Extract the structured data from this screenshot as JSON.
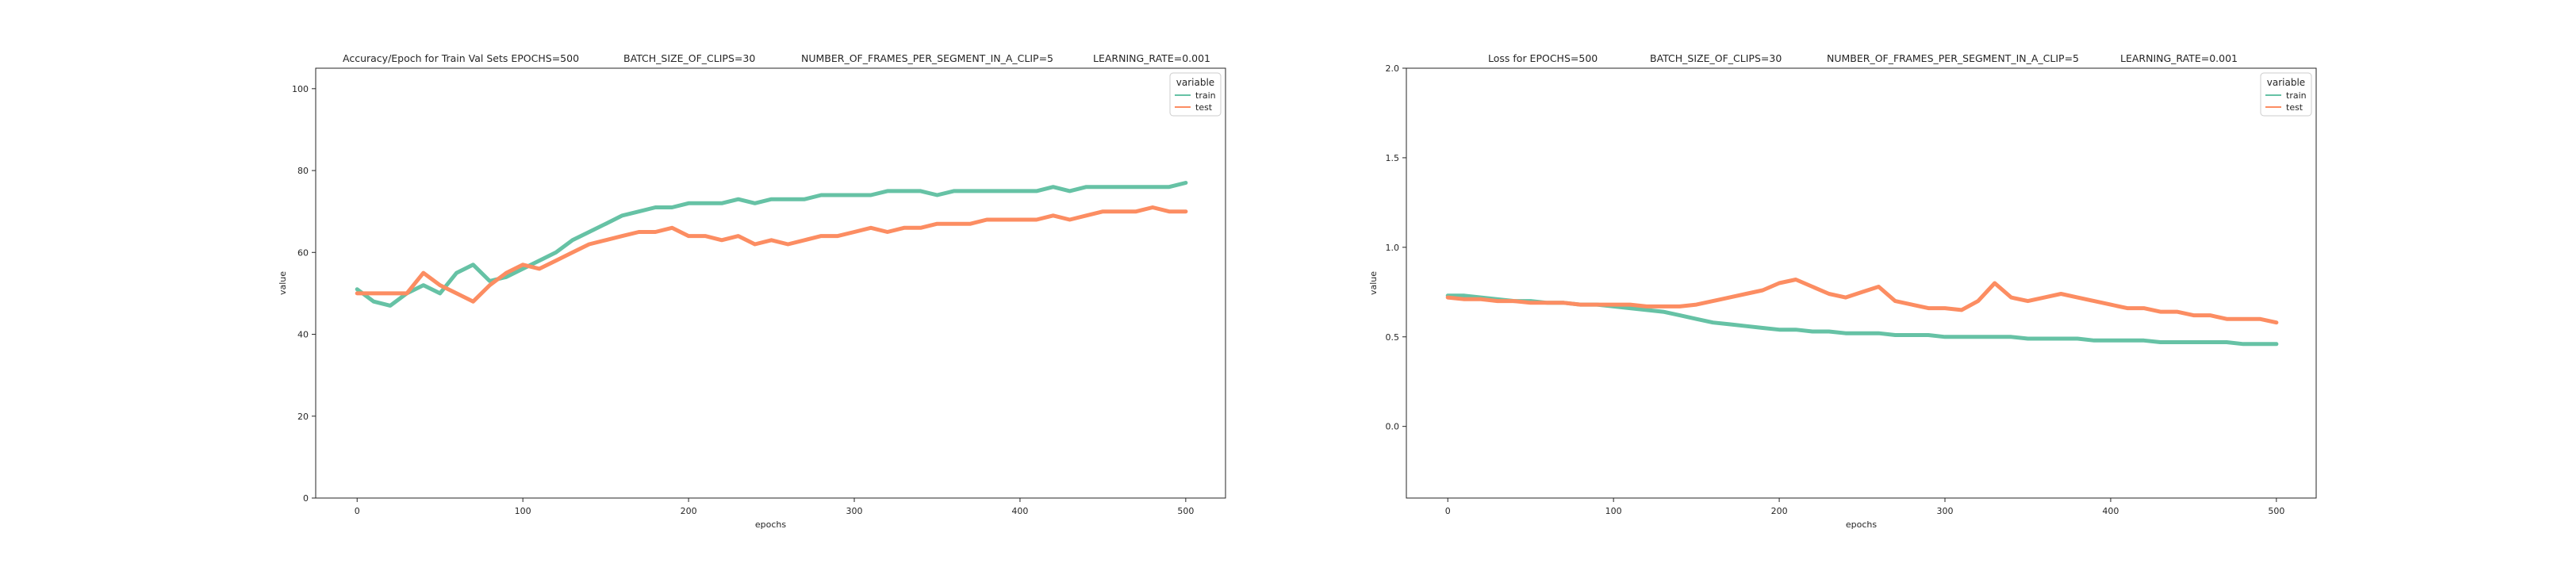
{
  "colors": {
    "train": "#66c2a5",
    "test": "#fc8d62",
    "axis": "#262626",
    "background": "#ffffff"
  },
  "chart_data": [
    {
      "type": "line",
      "title_parts": [
        "Accuracy/Epoch for Train Val Sets EPOCHS=500",
        "BATCH_SIZE_OF_CLIPS=30",
        "NUMBER_OF_FRAMES_PER_SEGMENT_IN_A_CLIP=5",
        "LEARNING_RATE=0.001"
      ],
      "xlabel": "epochs",
      "ylabel": "value",
      "xlim": [
        -25,
        524
      ],
      "ylim": [
        0,
        105
      ],
      "xticks": [
        0,
        100,
        200,
        300,
        400,
        500
      ],
      "yticks": [
        0,
        20,
        40,
        60,
        80,
        100
      ],
      "grid": false,
      "legend": {
        "title": "variable",
        "position": "top-right",
        "entries": [
          "train",
          "test"
        ]
      },
      "series": [
        {
          "name": "train",
          "x": [
            0,
            10,
            20,
            30,
            40,
            50,
            60,
            70,
            80,
            90,
            100,
            110,
            120,
            130,
            140,
            150,
            160,
            170,
            180,
            190,
            200,
            210,
            220,
            230,
            240,
            250,
            260,
            270,
            280,
            290,
            300,
            310,
            320,
            330,
            340,
            350,
            360,
            370,
            380,
            390,
            400,
            410,
            420,
            430,
            440,
            450,
            460,
            470,
            480,
            490,
            500
          ],
          "values": [
            51,
            48,
            47,
            50,
            52,
            50,
            55,
            57,
            53,
            54,
            56,
            58,
            60,
            63,
            65,
            67,
            69,
            70,
            71,
            71,
            72,
            72,
            72,
            73,
            72,
            73,
            73,
            73,
            74,
            74,
            74,
            74,
            75,
            75,
            75,
            74,
            75,
            75,
            75,
            75,
            75,
            75,
            76,
            75,
            76,
            76,
            76,
            76,
            76,
            76,
            77
          ]
        },
        {
          "name": "test",
          "x": [
            0,
            10,
            20,
            30,
            40,
            50,
            60,
            70,
            80,
            90,
            100,
            110,
            120,
            130,
            140,
            150,
            160,
            170,
            180,
            190,
            200,
            210,
            220,
            230,
            240,
            250,
            260,
            270,
            280,
            290,
            300,
            310,
            320,
            330,
            340,
            350,
            360,
            370,
            380,
            390,
            400,
            410,
            420,
            430,
            440,
            450,
            460,
            470,
            480,
            490,
            500
          ],
          "values": [
            50,
            50,
            50,
            50,
            55,
            52,
            50,
            48,
            52,
            55,
            57,
            56,
            58,
            60,
            62,
            63,
            64,
            65,
            65,
            66,
            64,
            64,
            63,
            64,
            62,
            63,
            62,
            63,
            64,
            64,
            65,
            66,
            65,
            66,
            66,
            67,
            67,
            67,
            68,
            68,
            68,
            68,
            69,
            68,
            69,
            70,
            70,
            70,
            71,
            70,
            70
          ]
        }
      ]
    },
    {
      "type": "line",
      "title_parts": [
        "Loss for  EPOCHS=500",
        "BATCH_SIZE_OF_CLIPS=30",
        "NUMBER_OF_FRAMES_PER_SEGMENT_IN_A_CLIP=5",
        "LEARNING_RATE=0.001"
      ],
      "xlabel": "epochs",
      "ylabel": "value",
      "xlim": [
        -25,
        524
      ],
      "ylim": [
        -0.4,
        2.0
      ],
      "xticks": [
        0,
        100,
        200,
        300,
        400,
        500
      ],
      "yticks": [
        0.0,
        0.5,
        1.0,
        1.5,
        2.0
      ],
      "ytick_labels": [
        "0.0",
        "0.5",
        "1.0",
        "1.5",
        "2.0"
      ],
      "grid": false,
      "legend": {
        "title": "variable",
        "position": "top-right",
        "entries": [
          "train",
          "test"
        ]
      },
      "series": [
        {
          "name": "train",
          "x": [
            0,
            10,
            20,
            30,
            40,
            50,
            60,
            70,
            80,
            90,
            100,
            110,
            120,
            130,
            140,
            150,
            160,
            170,
            180,
            190,
            200,
            210,
            220,
            230,
            240,
            250,
            260,
            270,
            280,
            290,
            300,
            310,
            320,
            330,
            340,
            350,
            360,
            370,
            380,
            390,
            400,
            410,
            420,
            430,
            440,
            450,
            460,
            470,
            480,
            490,
            500
          ],
          "values": [
            0.73,
            0.73,
            0.72,
            0.71,
            0.7,
            0.7,
            0.69,
            0.69,
            0.68,
            0.68,
            0.67,
            0.66,
            0.65,
            0.64,
            0.62,
            0.6,
            0.58,
            0.57,
            0.56,
            0.55,
            0.54,
            0.54,
            0.53,
            0.53,
            0.52,
            0.52,
            0.52,
            0.51,
            0.51,
            0.51,
            0.5,
            0.5,
            0.5,
            0.5,
            0.5,
            0.49,
            0.49,
            0.49,
            0.49,
            0.48,
            0.48,
            0.48,
            0.48,
            0.47,
            0.47,
            0.47,
            0.47,
            0.47,
            0.46,
            0.46,
            0.46
          ]
        },
        {
          "name": "test",
          "x": [
            0,
            10,
            20,
            30,
            40,
            50,
            60,
            70,
            80,
            90,
            100,
            110,
            120,
            130,
            140,
            150,
            160,
            170,
            180,
            190,
            200,
            210,
            220,
            230,
            240,
            250,
            260,
            270,
            280,
            290,
            300,
            310,
            320,
            330,
            340,
            350,
            360,
            370,
            380,
            390,
            400,
            410,
            420,
            430,
            440,
            450,
            460,
            470,
            480,
            490,
            500
          ],
          "values": [
            0.72,
            0.71,
            0.71,
            0.7,
            0.7,
            0.69,
            0.69,
            0.69,
            0.68,
            0.68,
            0.68,
            0.68,
            0.67,
            0.67,
            0.67,
            0.68,
            0.7,
            0.72,
            0.74,
            0.76,
            0.8,
            0.82,
            0.78,
            0.74,
            0.72,
            0.75,
            0.78,
            0.7,
            0.68,
            0.66,
            0.66,
            0.65,
            0.7,
            0.8,
            0.72,
            0.7,
            0.72,
            0.74,
            0.72,
            0.7,
            0.68,
            0.66,
            0.66,
            0.64,
            0.64,
            0.62,
            0.62,
            0.6,
            0.6,
            0.6,
            0.58
          ]
        }
      ]
    }
  ]
}
